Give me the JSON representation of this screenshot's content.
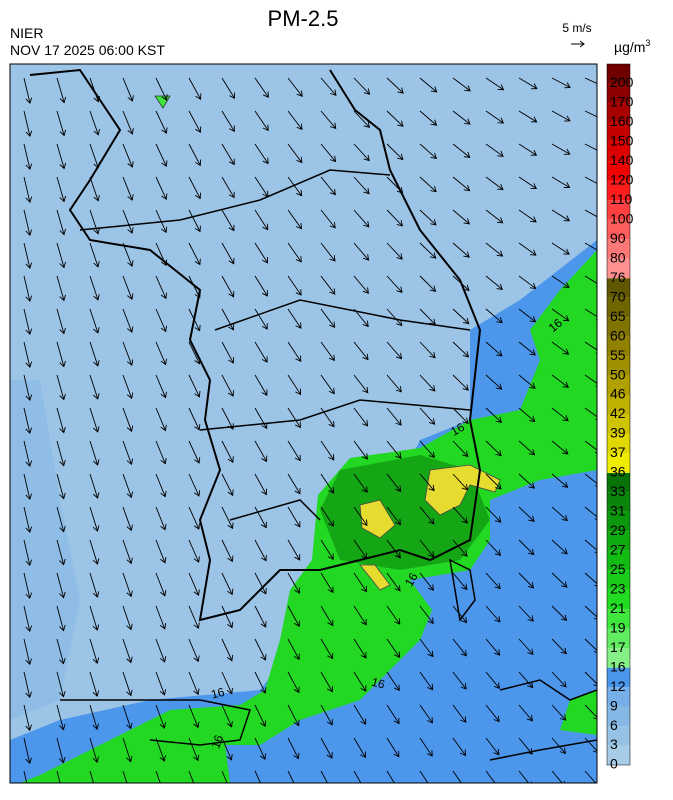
{
  "header": {
    "title": "PM-2.5",
    "agency": "NIER",
    "datetime": "NOV 17 2025 06:00 KST"
  },
  "wind_reference": {
    "label": "5 m/s"
  },
  "colorbar": {
    "unit": "µg/m",
    "unit_superscript": "3",
    "levels": [
      0,
      3,
      6,
      9,
      12,
      16,
      17,
      19,
      21,
      23,
      25,
      27,
      29,
      31,
      33,
      36,
      37,
      39,
      42,
      46,
      50,
      55,
      60,
      65,
      70,
      76,
      80,
      90,
      100,
      110,
      120,
      140,
      150,
      160,
      170,
      200
    ],
    "colors": [
      "#a6cce8",
      "#96c2e6",
      "#86b8e6",
      "#76aee8",
      "#4a96ec",
      "#86f086",
      "#62ec62",
      "#3ee63e",
      "#22dc22",
      "#18cc18",
      "#12bc12",
      "#0eaa0e",
      "#0c980c",
      "#0a860a",
      "#087408",
      "#f0ec00",
      "#e0d800",
      "#d0c400",
      "#c0b000",
      "#b0a000",
      "#a09000",
      "#908200",
      "#807400",
      "#706600",
      "#605800",
      "#ff9090",
      "#ff7878",
      "#ff5c5c",
      "#ff4040",
      "#ff1c1c",
      "#f00000",
      "#dc0000",
      "#c40000",
      "#a80000",
      "#8c0000",
      "#700000"
    ]
  },
  "contour_labels": [
    16,
    16,
    16,
    16,
    16,
    16
  ]
}
